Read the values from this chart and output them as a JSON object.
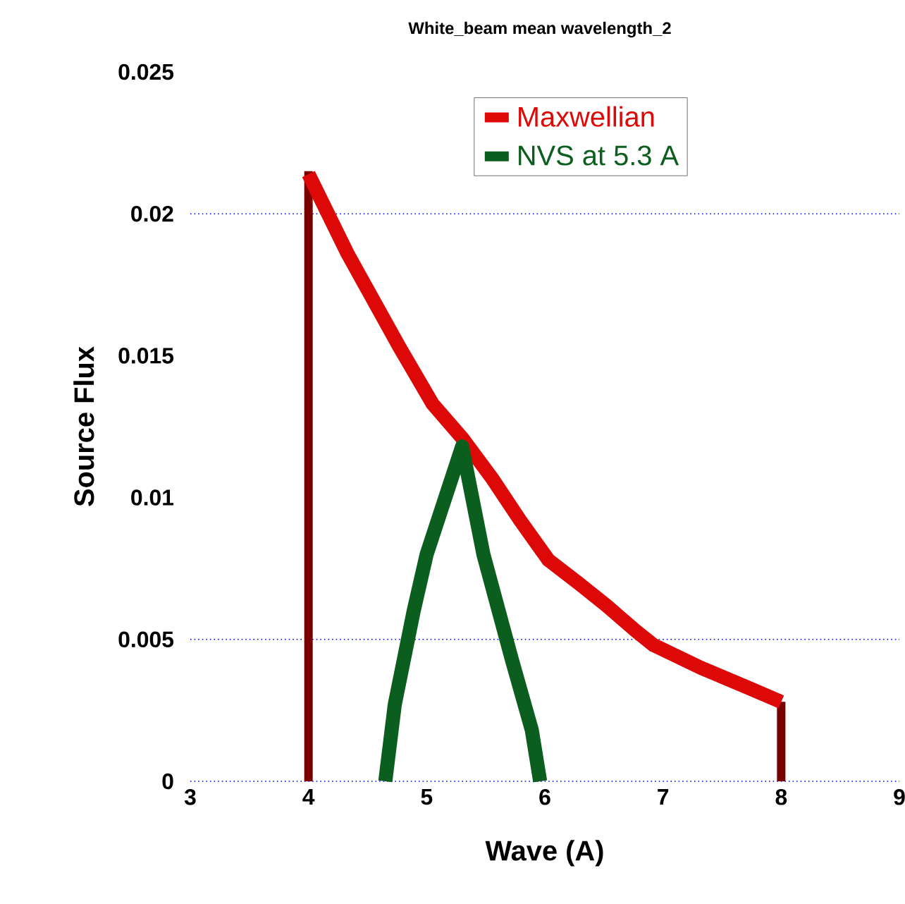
{
  "chart_data": {
    "type": "line",
    "title": "White_beam mean wavelength_2",
    "xlabel": "Wave (A)",
    "ylabel": "Source Flux",
    "xlim": [
      3,
      9
    ],
    "ylim": [
      0,
      0.025
    ],
    "xticks": [
      3,
      4,
      5,
      6,
      7,
      8,
      9
    ],
    "yticks": [
      0,
      0.005,
      0.01,
      0.015,
      0.02,
      0.025
    ],
    "legend": "top right",
    "line_style": "solid",
    "ref_lines": [
      {
        "axis": "y",
        "value": 0.005,
        "color": "#0000ff",
        "line_style": "dotted"
      },
      {
        "axis": "y",
        "value": 0.02,
        "color": "#0000ff",
        "line_style": "dotted"
      }
    ],
    "series": [
      {
        "name": "Maxwellian",
        "color": "#dd0808",
        "x": [
          4,
          4.33,
          4.77,
          5.05,
          5.3,
          5.55,
          5.79,
          6.03,
          6.28,
          6.52,
          6.77,
          6.92,
          7.32,
          7.72,
          8
        ],
        "values": [
          0.0214,
          0.0186,
          0.0153,
          0.0133,
          0.0121,
          0.0107,
          0.0092,
          0.0078,
          0.007,
          0.0062,
          0.0053,
          0.0048,
          0.004,
          0.0033,
          0.0028
        ]
      },
      {
        "name": "NVS at 5.3 A",
        "color": "#0b5e1e",
        "x": [
          4.65,
          4.73,
          4.89,
          5.0,
          5.3,
          5.48,
          5.72,
          5.89,
          5.96
        ],
        "values": [
          0,
          0.0027,
          0.006,
          0.008,
          0.0118,
          0.008,
          0.0043,
          0.0018,
          0
        ]
      },
      {
        "color": "#7a0000",
        "x": [
          4,
          4
        ],
        "values": [
          0,
          0.0215
        ]
      },
      {
        "color": "#7a0000",
        "x": [
          8,
          8
        ],
        "values": [
          0,
          0.0028
        ]
      }
    ]
  }
}
